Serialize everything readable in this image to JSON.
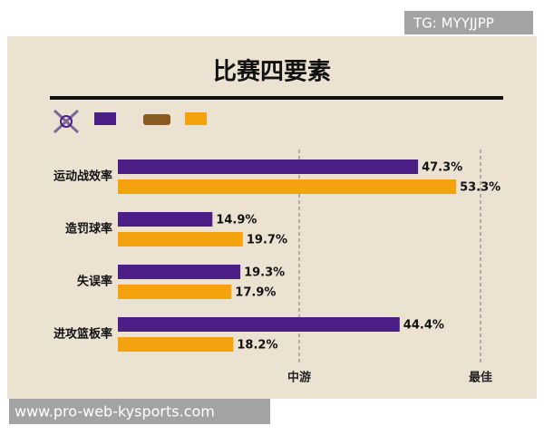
{
  "watermark": "TG: MYYJJPP",
  "footer": "www.pro-web-kysports.com",
  "chart_data": {
    "type": "hbar",
    "title": "比赛四要素",
    "categories": [
      "运动战效率",
      "造罚球率",
      "失误率",
      "进攻篮板率"
    ],
    "series": [
      {
        "color": "#4b1f86",
        "values": [
          47.3,
          14.9,
          19.3,
          44.4
        ],
        "value_labels": [
          "47.3%",
          "14.9%",
          "19.3%",
          "44.4%"
        ]
      },
      {
        "color": "#f5a20f",
        "values": [
          53.3,
          19.7,
          17.9,
          18.2
        ],
        "value_labels": [
          "53.3%",
          "19.7%",
          "17.9%",
          "18.2%"
        ]
      }
    ],
    "xlim": [
      0,
      60
    ],
    "reference_labels": [
      "中游",
      "最佳"
    ]
  }
}
